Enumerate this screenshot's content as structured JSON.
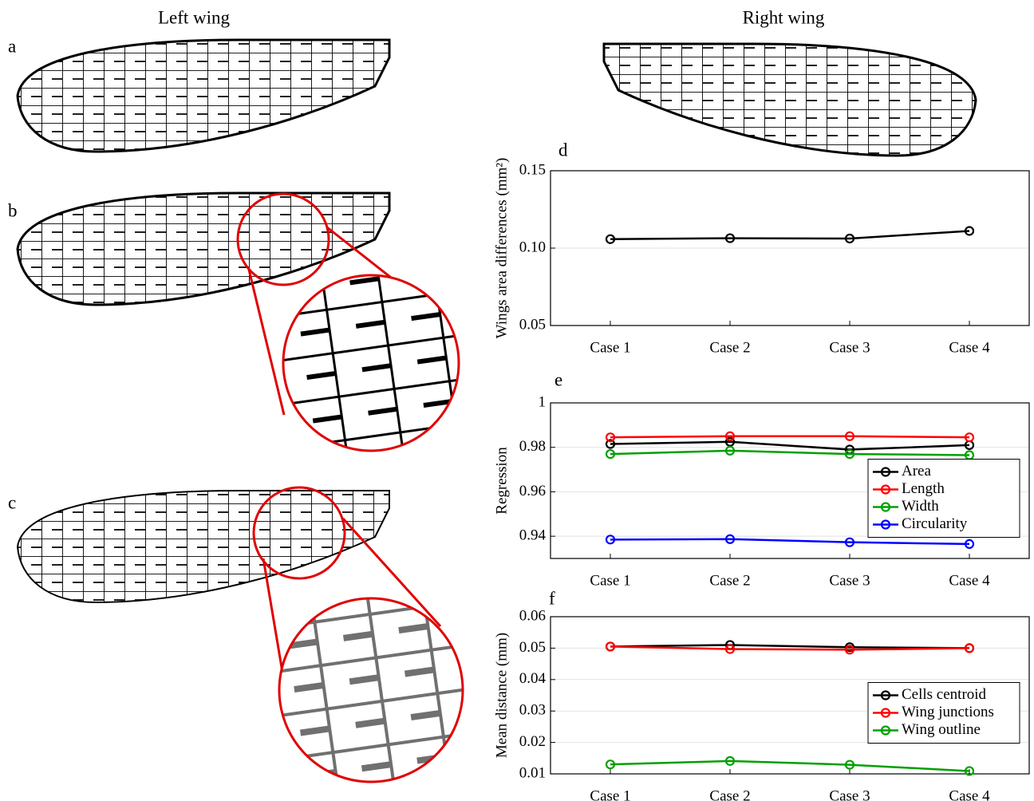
{
  "figure": {
    "left_title": "Left wing",
    "right_title": "Right wing",
    "panel_a": "a",
    "panel_b": "b",
    "panel_c": "c"
  },
  "chart_data": [
    {
      "type": "line",
      "title": "d",
      "y_label": "Wings area differences (mm²)",
      "categories": [
        "Case 1",
        "Case 2",
        "Case 3",
        "Case 4"
      ],
      "series": [
        {
          "name": null,
          "color": "#000000",
          "values": [
            0.1058,
            0.1064,
            0.1062,
            0.1111
          ]
        }
      ],
      "ylim": [
        0.05,
        0.15
      ],
      "yticks": [
        {
          "value": 0.05,
          "label": "0.05"
        },
        {
          "value": 0.1,
          "label": "0.10"
        },
        {
          "value": 0.15,
          "label": "0.15"
        }
      ],
      "grid": true,
      "legend": false
    },
    {
      "type": "line",
      "title": "e",
      "y_label": "Regression",
      "categories": [
        "Case 1",
        "Case 2",
        "Case 3",
        "Case 4"
      ],
      "series": [
        {
          "name": "Area",
          "color": "#000000",
          "values": [
            0.9815,
            0.9825,
            0.979,
            0.981
          ]
        },
        {
          "name": "Length",
          "color": "#ff0000",
          "values": [
            0.9845,
            0.985,
            0.985,
            0.9845
          ]
        },
        {
          "name": "Width",
          "color": "#00a000",
          "values": [
            0.977,
            0.9785,
            0.977,
            0.9765
          ]
        },
        {
          "name": "Circularity",
          "color": "#0000ff",
          "values": [
            0.9385,
            0.9387,
            0.9373,
            0.9365
          ]
        }
      ],
      "ylim": [
        0.93,
        1
      ],
      "yticks": [
        0.94,
        0.96,
        0.98,
        1
      ],
      "grid": true,
      "legend": "right"
    },
    {
      "type": "line",
      "title": "f",
      "y_label": "Mean distance (mm)",
      "categories": [
        "Case 1",
        "Case 2",
        "Case 3",
        "Case 4"
      ],
      "series": [
        {
          "name": "Cells centroid",
          "color": "#000000",
          "values": [
            0.0505,
            0.051,
            0.0503,
            0.05
          ]
        },
        {
          "name": "Wing junctions",
          "color": "#ff0000",
          "values": [
            0.0505,
            0.0497,
            0.0495,
            0.05
          ]
        },
        {
          "name": "Wing outline",
          "color": "#00a000",
          "values": [
            0.013,
            0.0141,
            0.0129,
            0.0109
          ]
        }
      ],
      "ylim": [
        0.01,
        0.06
      ],
      "yticks": [
        0.01,
        0.02,
        0.03,
        0.04,
        0.05,
        0.06
      ],
      "grid": true,
      "legend": "right"
    }
  ]
}
